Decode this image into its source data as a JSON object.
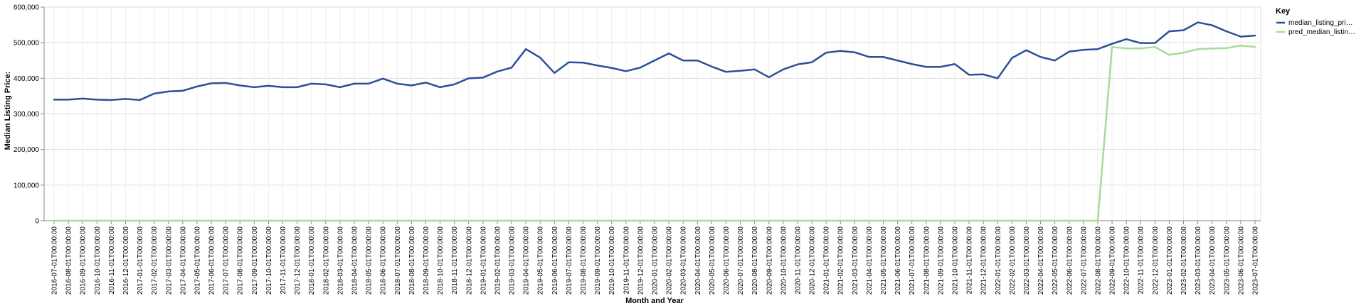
{
  "chart_data": {
    "type": "line",
    "xlabel": "Month and Year",
    "ylabel": "Median Listing Price:",
    "ylim": [
      0,
      600000
    ],
    "y_ticks": [
      "0",
      "100,000",
      "200,000",
      "300,000",
      "400,000",
      "500,000",
      "600,000"
    ],
    "grid": true,
    "legend": {
      "title": "Key",
      "position": "top-right",
      "entries": [
        "median_listing_pri…",
        "pred_median_listin…"
      ]
    },
    "x": [
      "2016-07-01T00:00:00",
      "2016-08-01T00:00:00",
      "2016-09-01T00:00:00",
      "2016-10-01T00:00:00",
      "2016-11-01T00:00:00",
      "2016-12-01T00:00:00",
      "2017-01-01T00:00:00",
      "2017-02-01T00:00:00",
      "2017-03-01T00:00:00",
      "2017-04-01T00:00:00",
      "2017-05-01T00:00:00",
      "2017-06-01T00:00:00",
      "2017-07-01T00:00:00",
      "2017-08-01T00:00:00",
      "2017-09-01T00:00:00",
      "2017-10-01T00:00:00",
      "2017-11-01T00:00:00",
      "2017-12-01T00:00:00",
      "2018-01-01T00:00:00",
      "2018-02-01T00:00:00",
      "2018-03-01T00:00:00",
      "2018-04-01T00:00:00",
      "2018-05-01T00:00:00",
      "2018-06-01T00:00:00",
      "2018-07-01T00:00:00",
      "2018-08-01T00:00:00",
      "2018-09-01T00:00:00",
      "2018-10-01T00:00:00",
      "2018-11-01T00:00:00",
      "2018-12-01T00:00:00",
      "2019-01-01T00:00:00",
      "2019-02-01T00:00:00",
      "2019-03-01T00:00:00",
      "2019-04-01T00:00:00",
      "2019-05-01T00:00:00",
      "2019-06-01T00:00:00",
      "2019-07-01T00:00:00",
      "2019-08-01T00:00:00",
      "2019-09-01T00:00:00",
      "2019-10-01T00:00:00",
      "2019-11-01T00:00:00",
      "2019-12-01T00:00:00",
      "2020-01-01T00:00:00",
      "2020-02-01T00:00:00",
      "2020-03-01T00:00:00",
      "2020-04-01T00:00:00",
      "2020-05-01T00:00:00",
      "2020-06-01T00:00:00",
      "2020-07-01T00:00:00",
      "2020-08-01T00:00:00",
      "2020-09-01T00:00:00",
      "2020-10-01T00:00:00",
      "2020-11-01T00:00:00",
      "2020-12-01T00:00:00",
      "2021-01-01T00:00:00",
      "2021-02-01T00:00:00",
      "2021-03-01T00:00:00",
      "2021-04-01T00:00:00",
      "2021-05-01T00:00:00",
      "2021-06-01T00:00:00",
      "2021-07-01T00:00:00",
      "2021-08-01T00:00:00",
      "2021-09-01T00:00:00",
      "2021-10-01T00:00:00",
      "2021-11-01T00:00:00",
      "2021-12-01T00:00:00",
      "2022-01-01T00:00:00",
      "2022-02-01T00:00:00",
      "2022-03-01T00:00:00",
      "2022-04-01T00:00:00",
      "2022-05-01T00:00:00",
      "2022-06-01T00:00:00",
      "2022-07-01T00:00:00",
      "2022-08-01T00:00:00",
      "2022-09-01T00:00:00",
      "2022-10-01T00:00:00",
      "2022-11-01T00:00:00",
      "2022-12-01T00:00:00",
      "2023-01-01T00:00:00",
      "2023-02-01T00:00:00",
      "2023-03-01T00:00:00",
      "2023-04-01T00:00:00",
      "2023-05-01T00:00:00",
      "2023-06-01T00:00:00",
      "2023-07-01T00:00:00"
    ],
    "series": [
      {
        "name": "median_listing_pri…",
        "color": "#2b4f9a",
        "values": [
          340000,
          340000,
          343000,
          340000,
          339000,
          342000,
          339000,
          357000,
          363000,
          365000,
          377000,
          386000,
          387000,
          380000,
          375000,
          379000,
          375000,
          375000,
          385000,
          383000,
          375000,
          385000,
          385000,
          399000,
          385000,
          380000,
          388000,
          375000,
          383000,
          400000,
          402000,
          419000,
          430000,
          482000,
          458000,
          415000,
          445000,
          444000,
          436000,
          429000,
          420000,
          430000,
          450000,
          470000,
          450000,
          450000,
          433000,
          418000,
          421000,
          425000,
          403000,
          425000,
          439000,
          445000,
          472000,
          477000,
          473000,
          460000,
          460000,
          450000,
          440000,
          432000,
          432000,
          440000,
          410000,
          411000,
          400000,
          457000,
          479000,
          460000,
          450000,
          475000,
          480000,
          482000,
          497000,
          510000,
          499000,
          499000,
          532000,
          535000,
          557000,
          549000,
          532000,
          517000,
          520000
        ]
      },
      {
        "name": "pred_median_listin…",
        "color": "#a5dc98",
        "values": [
          0,
          0,
          0,
          0,
          0,
          0,
          0,
          0,
          0,
          0,
          0,
          0,
          0,
          0,
          0,
          0,
          0,
          0,
          0,
          0,
          0,
          0,
          0,
          0,
          0,
          0,
          0,
          0,
          0,
          0,
          0,
          0,
          0,
          0,
          0,
          0,
          0,
          0,
          0,
          0,
          0,
          0,
          0,
          0,
          0,
          0,
          0,
          0,
          0,
          0,
          0,
          0,
          0,
          0,
          0,
          0,
          0,
          0,
          0,
          0,
          0,
          0,
          0,
          0,
          0,
          0,
          0,
          0,
          0,
          0,
          0,
          0,
          0,
          0,
          488000,
          484000,
          484000,
          488000,
          466000,
          472000,
          482000,
          484000,
          485000,
          492000,
          488000
        ]
      }
    ]
  }
}
